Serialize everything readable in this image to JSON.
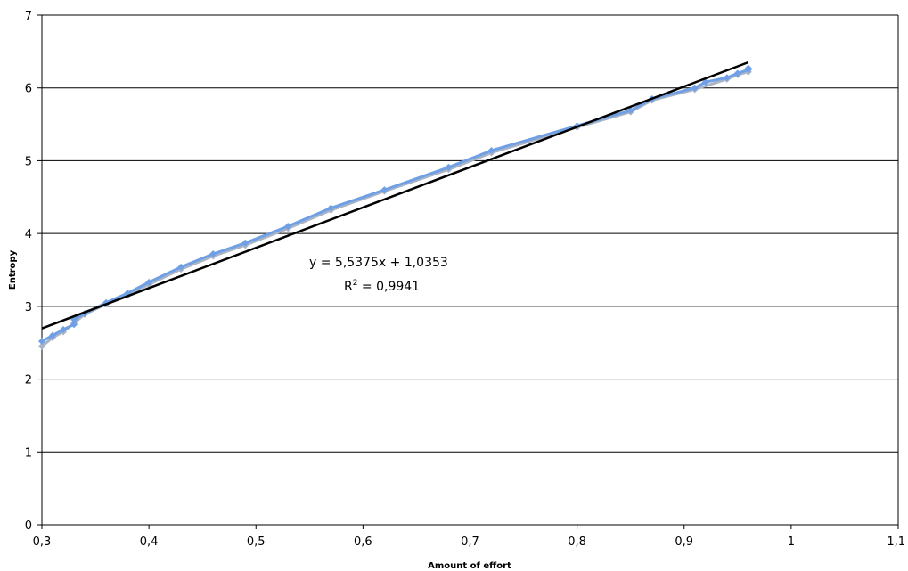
{
  "chart_data": {
    "type": "scatter",
    "title": "",
    "xlabel": "Amount of effort",
    "ylabel": "Entropy",
    "xlim": [
      0.3,
      1.1
    ],
    "ylim": [
      0,
      7
    ],
    "x_ticks": [
      "0,3",
      "0,4",
      "0,5",
      "0,6",
      "0,7",
      "0,8",
      "0,9",
      "1",
      "1,1"
    ],
    "y_ticks": [
      "0",
      "1",
      "2",
      "3",
      "4",
      "5",
      "6",
      "7"
    ],
    "grid": "horizontal",
    "series": [
      {
        "color": "#6fa0e6",
        "x": [
          0.3,
          0.31,
          0.32,
          0.33,
          0.33,
          0.34,
          0.36,
          0.38,
          0.4,
          0.43,
          0.46,
          0.49,
          0.53,
          0.57,
          0.62,
          0.68,
          0.72,
          0.8,
          0.85,
          0.87,
          0.91,
          0.92,
          0.94,
          0.95,
          0.96,
          0.96
        ],
        "y": [
          2.52,
          2.6,
          2.68,
          2.75,
          2.82,
          2.9,
          3.05,
          3.18,
          3.33,
          3.54,
          3.72,
          3.87,
          4.1,
          4.35,
          4.6,
          4.91,
          5.14,
          5.48,
          5.69,
          5.85,
          6.0,
          6.08,
          6.14,
          6.2,
          6.25,
          6.27
        ]
      },
      {
        "color": "#aab4c4",
        "x": [
          0.3,
          0.31,
          0.32,
          0.33,
          0.34,
          0.36,
          0.38,
          0.4,
          0.43,
          0.46,
          0.49,
          0.53,
          0.57,
          0.62,
          0.68,
          0.72,
          0.8,
          0.85,
          0.87,
          0.91,
          0.94,
          0.95,
          0.96
        ],
        "y": [
          2.45,
          2.57,
          2.65,
          2.77,
          2.89,
          3.03,
          3.15,
          3.3,
          3.51,
          3.69,
          3.84,
          4.07,
          4.32,
          4.58,
          4.88,
          5.11,
          5.46,
          5.67,
          5.83,
          5.98,
          6.12,
          6.18,
          6.22
        ]
      }
    ],
    "trendline": {
      "type": "linear",
      "slope": 5.5375,
      "intercept": 1.0353,
      "x_range": [
        0.3,
        0.96
      ],
      "color": "#000000"
    },
    "annotations": {
      "equation": "y = 5,5375x + 1,0353",
      "r2_prefix": "R",
      "r2_sup": "2",
      "r2_value": " = 0,9941"
    }
  }
}
